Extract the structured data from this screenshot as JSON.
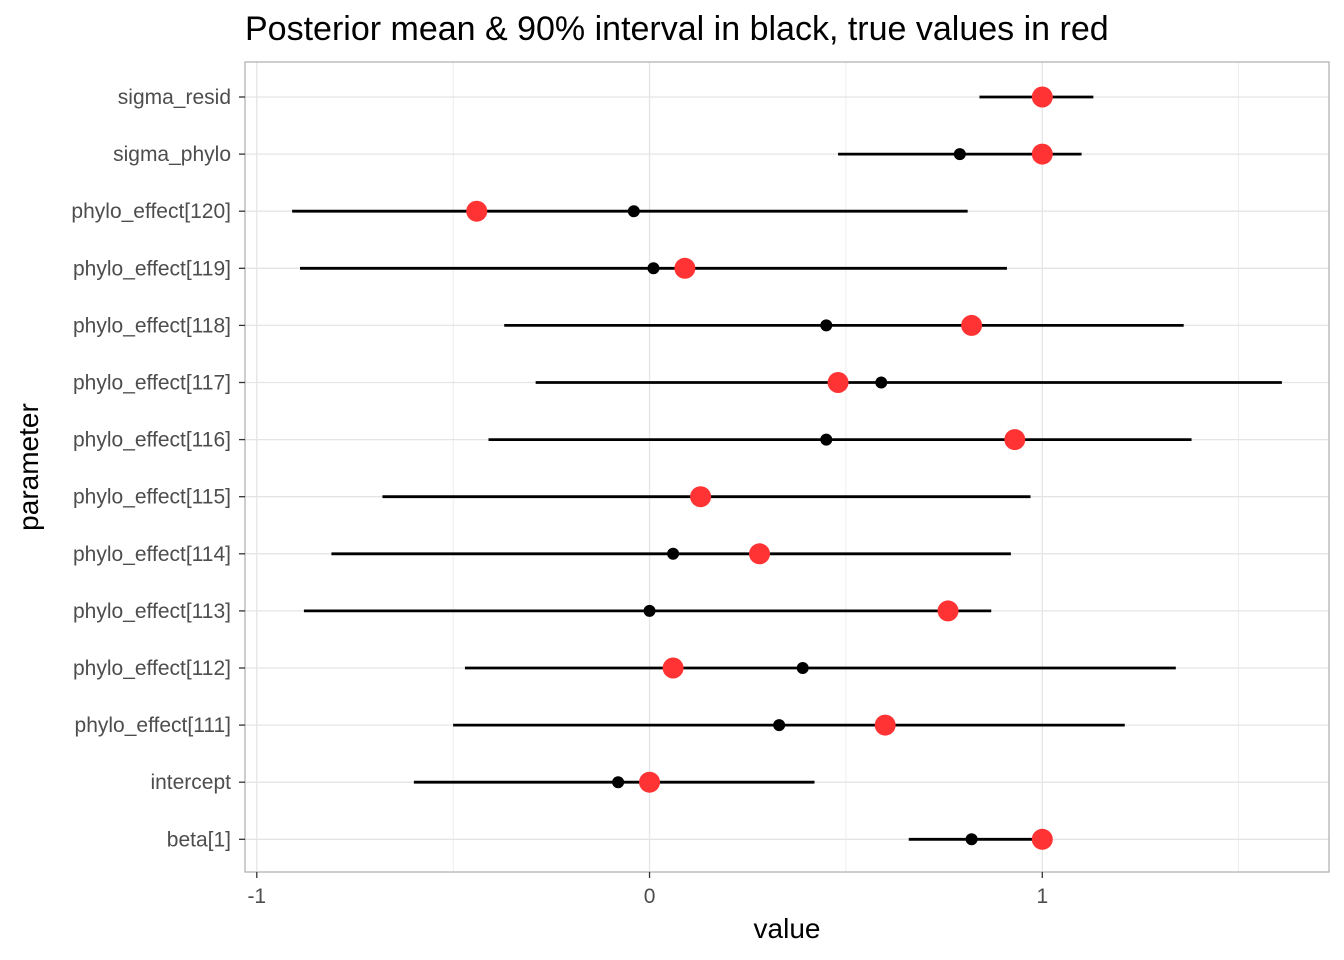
{
  "chart_data": {
    "type": "pointrange",
    "title": "Posterior mean & 90% interval in black, true values in red",
    "xlabel": "value",
    "ylabel": "parameter",
    "xlim": [
      -1.03,
      1.73
    ],
    "x_ticks": [
      -1,
      0,
      1
    ],
    "x_tick_labels": [
      "-1",
      "0",
      "1"
    ],
    "grid": true,
    "colors": {
      "estimate": "#000000",
      "true_value": "#ff3333",
      "grid": "#e5e5e5",
      "panel_border": "#b3b3b3"
    },
    "categories": [
      "sigma_resid",
      "sigma_phylo",
      "phylo_effect[120]",
      "phylo_effect[119]",
      "phylo_effect[118]",
      "phylo_effect[117]",
      "phylo_effect[116]",
      "phylo_effect[115]",
      "phylo_effect[114]",
      "phylo_effect[113]",
      "phylo_effect[112]",
      "phylo_effect[111]",
      "intercept",
      "beta[1]"
    ],
    "series": [
      {
        "values": [
          0.99,
          0.79,
          -0.04,
          0.01,
          0.45,
          0.59,
          0.45,
          0.13,
          0.06,
          0.0,
          0.39,
          0.33,
          -0.08,
          0.82
        ]
      },
      {
        "lower": [
          0.84,
          0.48,
          -0.91,
          -0.89,
          -0.37,
          -0.29,
          -0.41,
          -0.68,
          -0.81,
          -0.88,
          -0.47,
          -0.5,
          -0.6,
          0.66
        ]
      },
      {
        "upper": [
          1.13,
          1.1,
          0.81,
          0.91,
          1.36,
          1.61,
          1.38,
          0.97,
          0.92,
          0.87,
          1.34,
          1.21,
          0.42,
          1.0
        ]
      },
      {
        "values": [
          1.0,
          1.0,
          -0.44,
          0.09,
          0.82,
          0.48,
          0.93,
          0.13,
          0.28,
          0.76,
          0.06,
          0.6,
          0.0,
          1.0
        ]
      }
    ]
  }
}
